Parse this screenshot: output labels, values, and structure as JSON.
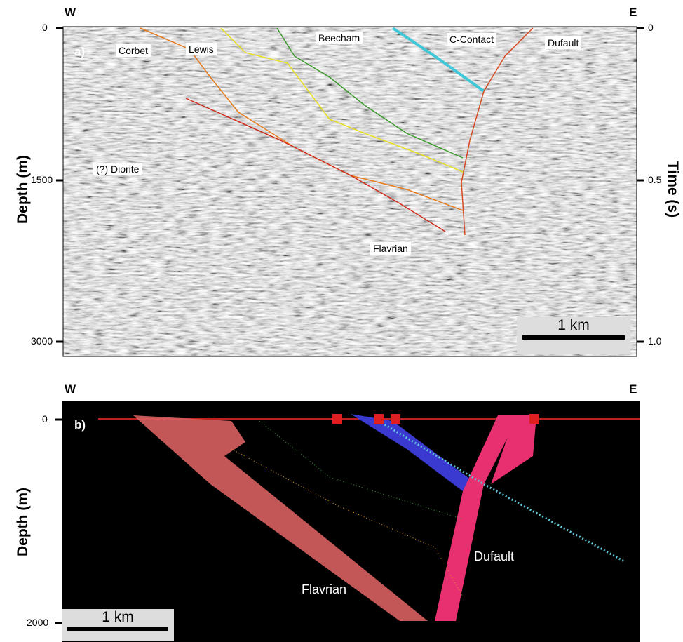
{
  "panel_a": {
    "label": "a)",
    "west": "W",
    "east": "E",
    "left_axis": {
      "title": "Depth (m)",
      "ticks": [
        "0",
        "1500",
        "3000"
      ]
    },
    "right_axis": {
      "title": "Time (s)",
      "ticks": [
        "0",
        "0.5",
        "1.0"
      ]
    },
    "annotations": [
      "Corbet",
      "Lewis",
      "Beecham",
      "C-Contact",
      "Dufault",
      "(?) Diorite",
      "Flavrian"
    ],
    "scale_bar": "1 km"
  },
  "panel_b": {
    "label": "b)",
    "west": "W",
    "east": "E",
    "left_axis": {
      "title": "Depth (m)",
      "ticks": [
        "0",
        "2000"
      ]
    },
    "annotations": [
      "Dufault",
      "Flavrian"
    ],
    "scale_bar": "1 km"
  }
}
